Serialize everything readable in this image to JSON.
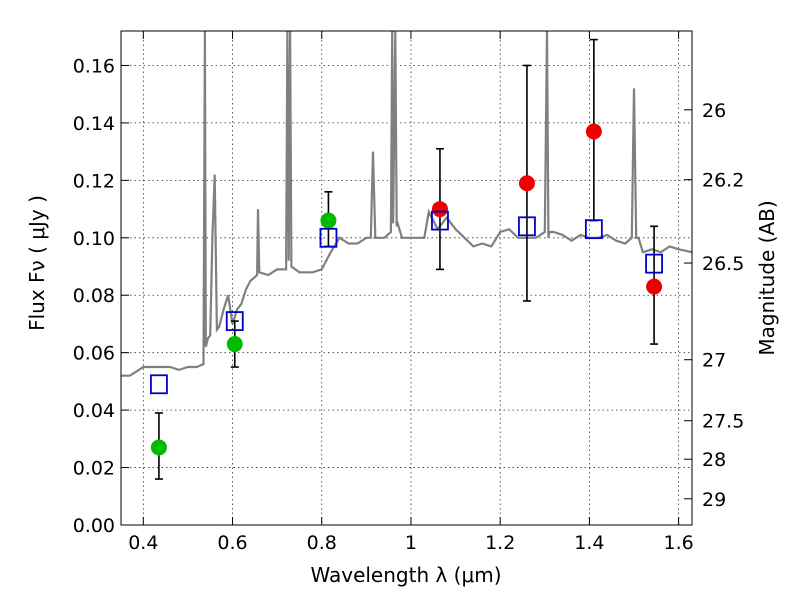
{
  "chart_data": {
    "type": "scatter",
    "title": "",
    "xlabel": "Wavelength  λ (μm)",
    "ylabel": "Flux  Fν  ( μJy )",
    "y2label": "Magnitude (AB)",
    "xlim": [
      0.35,
      1.63
    ],
    "ylim": [
      0.0,
      0.172
    ],
    "xticks": [
      0.4,
      0.6,
      0.8,
      1.0,
      1.2,
      1.4,
      1.6
    ],
    "xtick_labels": [
      "0.4",
      "0.6",
      "0.8",
      "1",
      "1.2",
      "1.4",
      "1.6"
    ],
    "yticks": [
      0.0,
      0.02,
      0.04,
      0.06,
      0.08,
      0.1,
      0.12,
      0.14,
      0.16
    ],
    "ytick_labels": [
      "0.00",
      "0.02",
      "0.04",
      "0.06",
      "0.08",
      "0.10",
      "0.12",
      "0.14",
      "0.16"
    ],
    "y2ticks": [
      26,
      26.2,
      26.5,
      27,
      27.5,
      28,
      29
    ],
    "y2tick_labels": [
      "26",
      "26.2",
      "26.5",
      "27",
      "27.5",
      "28",
      "29"
    ],
    "grid": true,
    "colors": {
      "model_line": "#808080",
      "observed_green": "#00bb00",
      "observed_red": "#ee0000",
      "model_box": "#0000cc",
      "errorbar": "#000000"
    },
    "series": [
      {
        "kind": "line",
        "color": "#808080",
        "x": [
          0.35,
          0.37,
          0.39,
          0.4,
          0.42,
          0.44,
          0.46,
          0.48,
          0.5,
          0.52,
          0.535,
          0.538,
          0.54,
          0.545,
          0.55,
          0.555,
          0.56,
          0.565,
          0.57,
          0.58,
          0.59,
          0.6,
          0.61,
          0.62,
          0.63,
          0.64,
          0.655,
          0.657,
          0.66,
          0.68,
          0.7,
          0.72,
          0.723,
          0.726,
          0.729,
          0.732,
          0.75,
          0.78,
          0.8,
          0.82,
          0.84,
          0.86,
          0.88,
          0.9,
          0.91,
          0.915,
          0.92,
          0.94,
          0.955,
          0.958,
          0.96,
          0.965,
          0.968,
          0.97,
          0.98,
          1.0,
          1.02,
          1.03,
          1.04,
          1.06,
          1.08,
          1.1,
          1.12,
          1.14,
          1.16,
          1.18,
          1.2,
          1.22,
          1.24,
          1.26,
          1.28,
          1.3,
          1.305,
          1.308,
          1.31,
          1.32,
          1.34,
          1.36,
          1.38,
          1.4,
          1.42,
          1.44,
          1.46,
          1.48,
          1.495,
          1.5,
          1.505,
          1.51,
          1.52,
          1.54,
          1.56,
          1.58,
          1.6,
          1.63
        ],
        "y": [
          0.052,
          0.052,
          0.054,
          0.055,
          0.055,
          0.055,
          0.055,
          0.054,
          0.055,
          0.055,
          0.056,
          0.172,
          0.062,
          0.065,
          0.066,
          0.1,
          0.122,
          0.068,
          0.069,
          0.075,
          0.08,
          0.07,
          0.075,
          0.077,
          0.082,
          0.085,
          0.087,
          0.11,
          0.088,
          0.087,
          0.089,
          0.089,
          0.172,
          0.092,
          0.172,
          0.09,
          0.088,
          0.088,
          0.089,
          0.095,
          0.1,
          0.098,
          0.098,
          0.1,
          0.1,
          0.13,
          0.1,
          0.1,
          0.102,
          0.172,
          0.105,
          0.172,
          0.104,
          0.105,
          0.1,
          0.1,
          0.1,
          0.1,
          0.109,
          0.103,
          0.107,
          0.103,
          0.1,
          0.097,
          0.098,
          0.097,
          0.102,
          0.103,
          0.1,
          0.1,
          0.1,
          0.102,
          0.172,
          0.1,
          0.102,
          0.102,
          0.101,
          0.099,
          0.101,
          0.1,
          0.1,
          0.101,
          0.099,
          0.098,
          0.1,
          0.152,
          0.1,
          0.1,
          0.095,
          0.096,
          0.095,
          0.097,
          0.096,
          0.095
        ]
      },
      {
        "kind": "errorbar",
        "name": "green points",
        "color": "#00bb00",
        "points": [
          {
            "x": 0.435,
            "y": 0.027,
            "yerr_low": 0.016,
            "yerr_high": 0.039
          },
          {
            "x": 0.605,
            "y": 0.063,
            "yerr_low": 0.055,
            "yerr_high": 0.071
          },
          {
            "x": 0.815,
            "y": 0.106,
            "yerr_low": 0.097,
            "yerr_high": 0.116
          }
        ]
      },
      {
        "kind": "errorbar",
        "name": "red points",
        "color": "#ee0000",
        "points": [
          {
            "x": 1.065,
            "y": 0.11,
            "yerr_low": 0.089,
            "yerr_high": 0.131
          },
          {
            "x": 1.26,
            "y": 0.119,
            "yerr_low": 0.078,
            "yerr_high": 0.16
          },
          {
            "x": 1.41,
            "y": 0.137,
            "yerr_low": 0.106,
            "yerr_high": 0.169
          },
          {
            "x": 1.545,
            "y": 0.083,
            "yerr_low": 0.063,
            "yerr_high": 0.104
          }
        ]
      },
      {
        "kind": "box",
        "name": "blue squares",
        "color": "#0000cc",
        "x": [
          0.435,
          0.605,
          0.815,
          1.065,
          1.26,
          1.41,
          1.545
        ],
        "y": [
          0.049,
          0.071,
          0.1,
          0.106,
          0.104,
          0.103,
          0.091
        ]
      }
    ]
  }
}
